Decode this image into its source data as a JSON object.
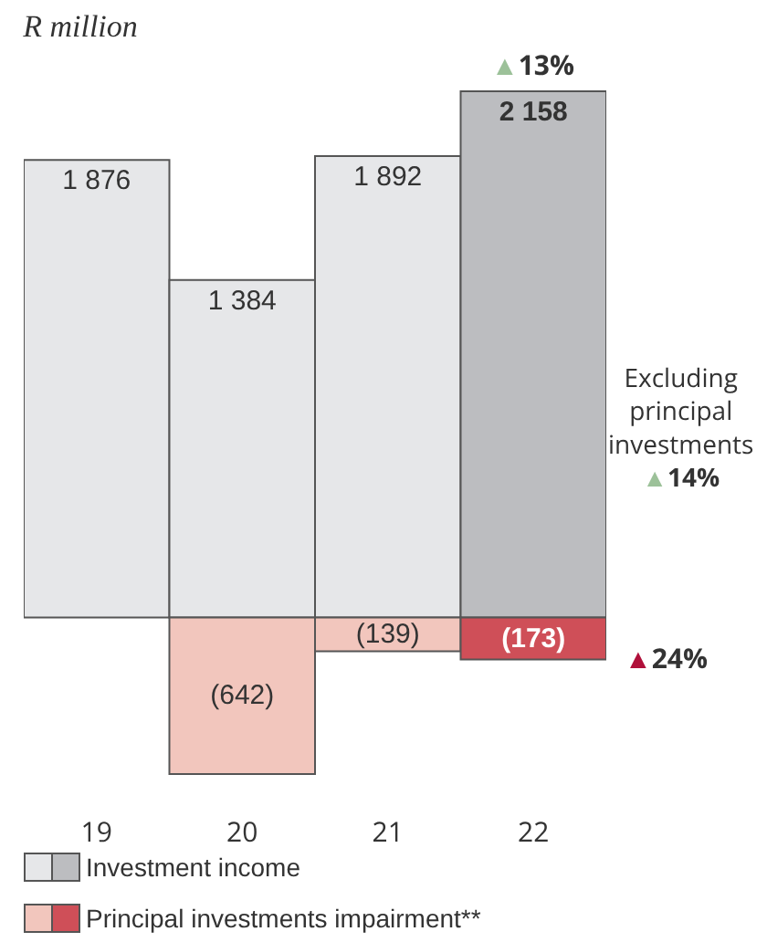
{
  "chart_data": {
    "type": "bar",
    "title": "R million",
    "categories": [
      "19",
      "20",
      "21",
      "22"
    ],
    "stacked": true,
    "legend": "bottom",
    "series": [
      {
        "name": "Investment income",
        "values": [
          1876,
          1384,
          1892,
          2158
        ],
        "colors": [
          "#e6e7e9",
          "#e6e7e9",
          "#e6e7e9",
          "#bcbdc0"
        ],
        "value_labels": [
          "1 876",
          "1 384",
          "1 892",
          "2 158"
        ]
      },
      {
        "name": "Principal investments impairment**",
        "values": [
          null,
          -642,
          -139,
          -173
        ],
        "colors": [
          "#f2c6bd",
          "#f2c6bd",
          "#f2c6bd",
          "#cf4f58"
        ],
        "value_labels": [
          null,
          "(642)",
          "(139)",
          "(173)"
        ]
      }
    ],
    "annotations": [
      {
        "text": "▲13%",
        "x": "22",
        "y": 2158
      },
      "Excluding\nprincipal\ninvestments\n▲14%",
      "▲24%"
    ]
  }
}
